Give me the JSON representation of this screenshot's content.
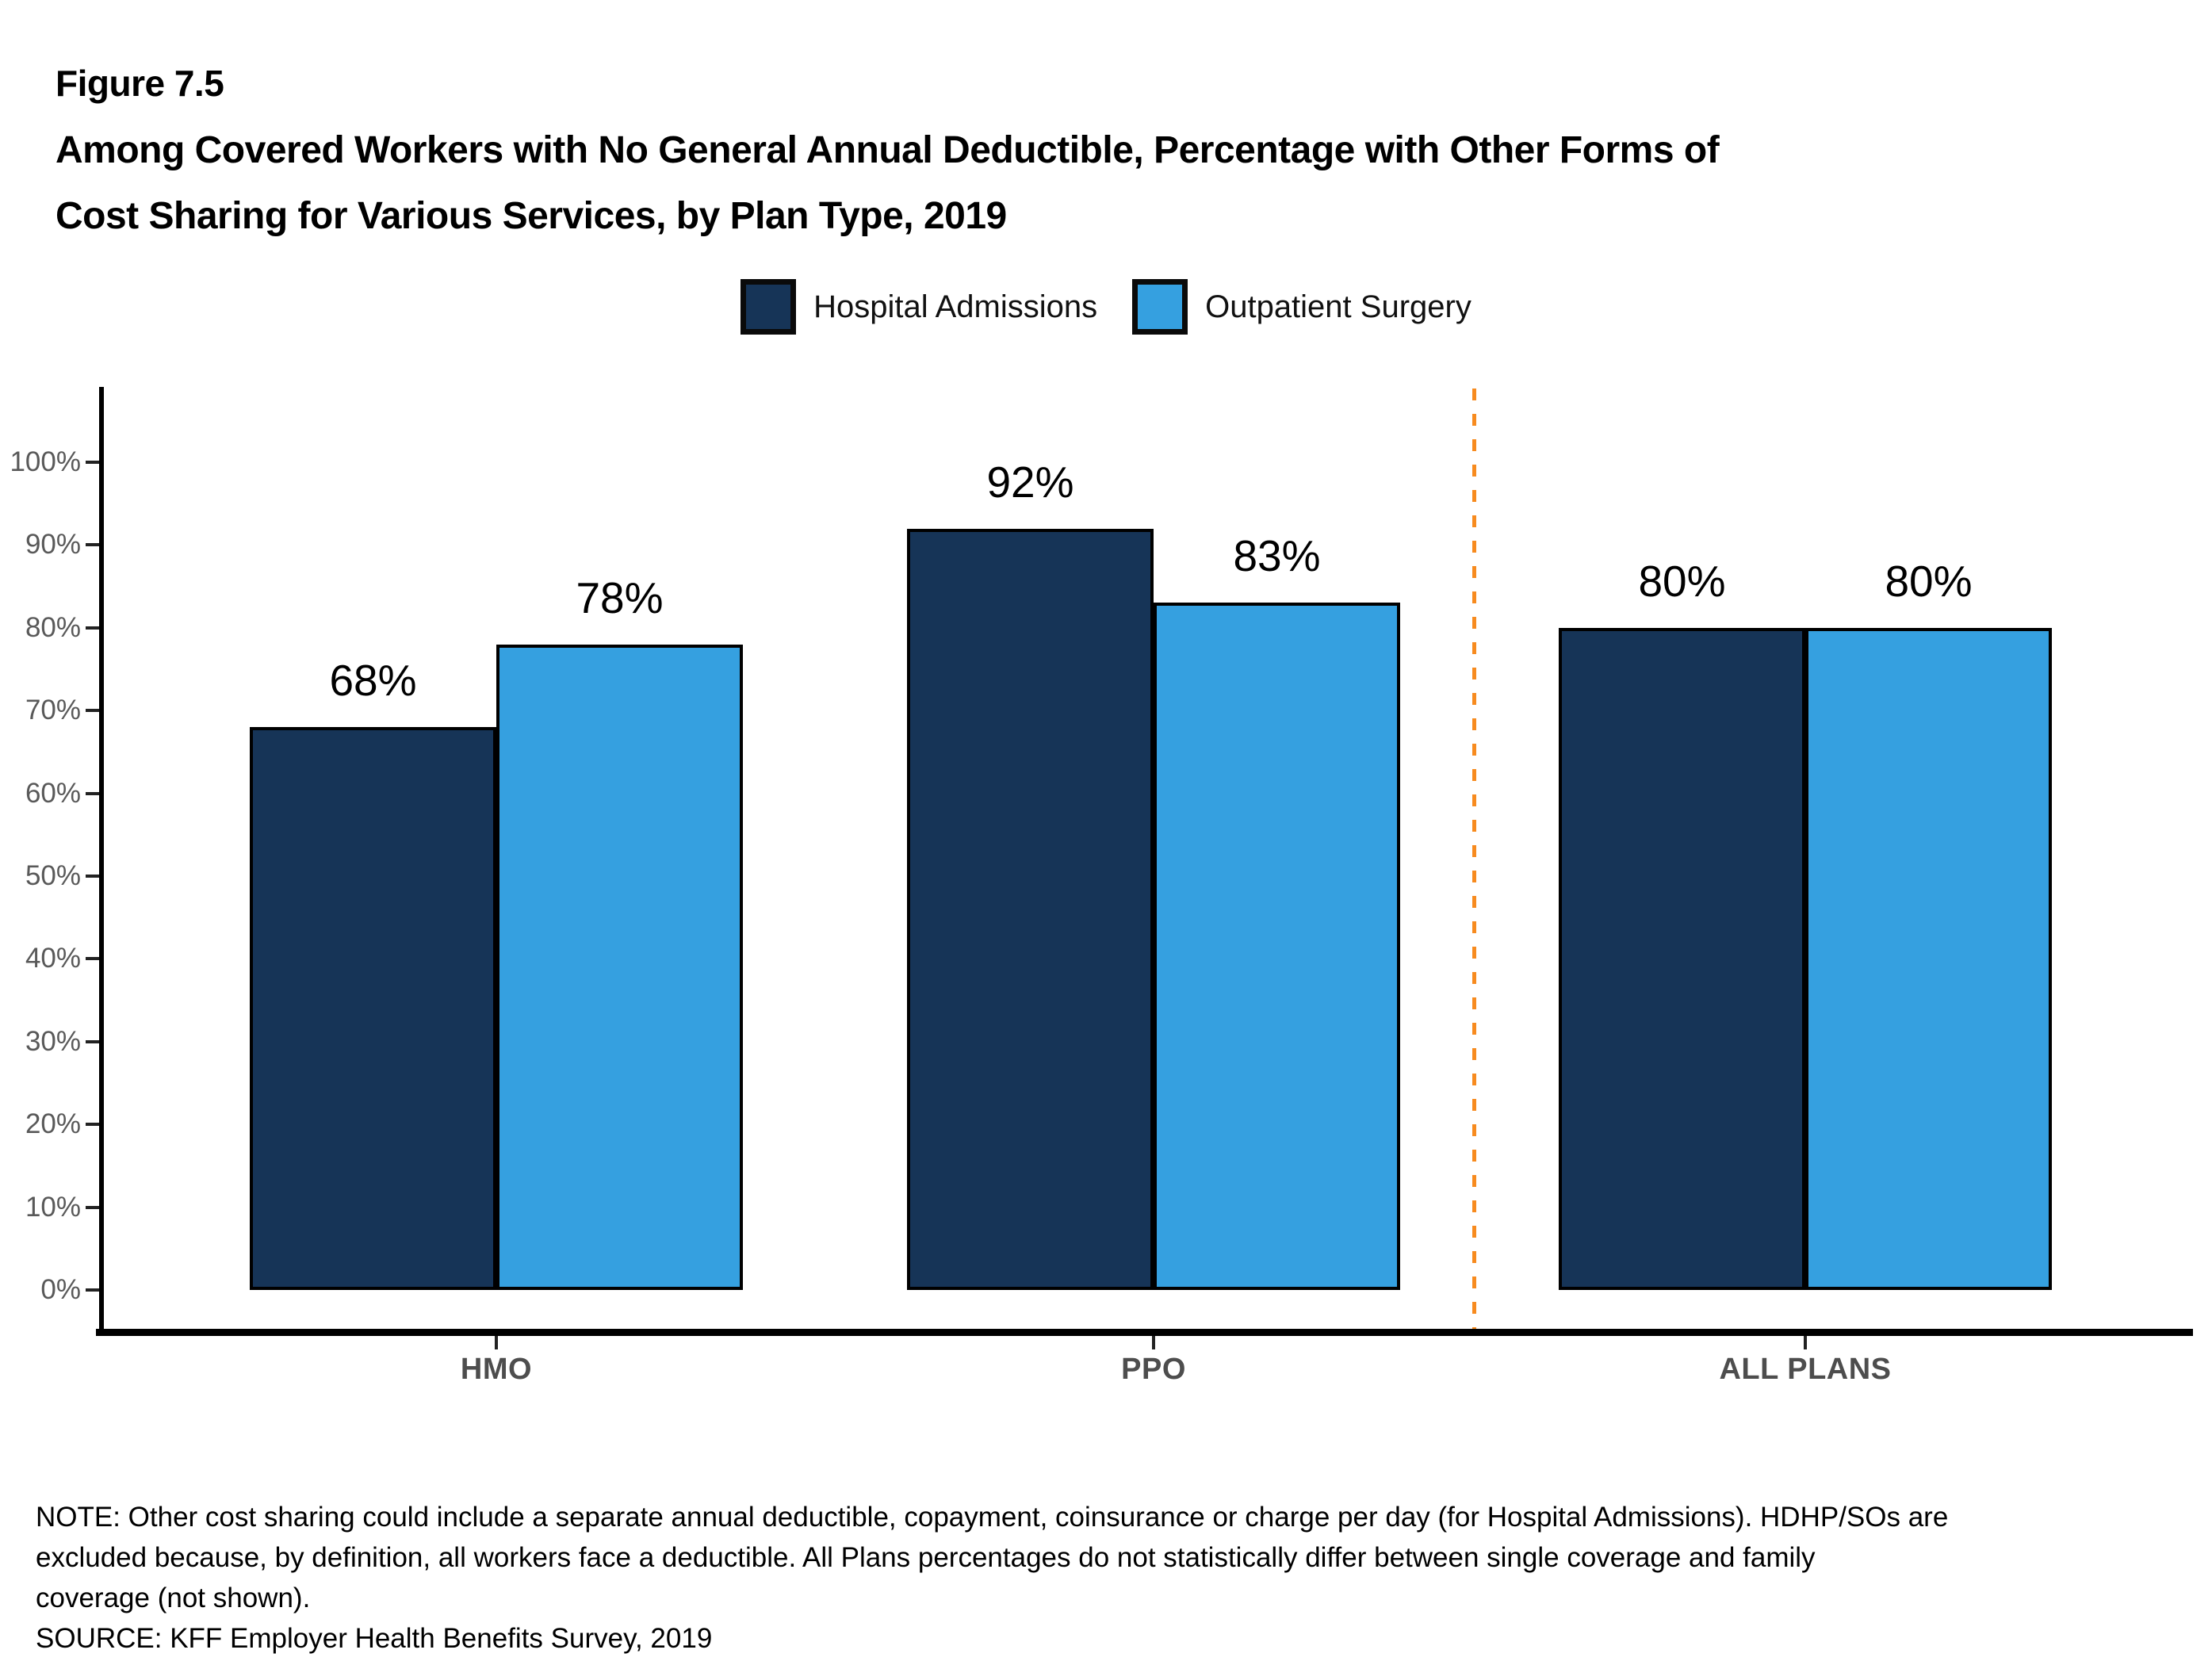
{
  "figure": {
    "label": "Figure 7.5",
    "title_line1": "Among Covered Workers with No General Annual Deductible, Percentage with Other Forms of",
    "title_line2": "Cost Sharing for Various Services, by Plan Type, 2019"
  },
  "legend": [
    {
      "label": "Hospital Admissions",
      "color": "#163457"
    },
    {
      "label": "Outpatient Surgery",
      "color": "#35A0E0"
    }
  ],
  "chart_data": {
    "type": "bar",
    "title": "Among Covered Workers with No General Annual Deductible, Percentage with Other Forms of Cost Sharing for Various Services, by Plan Type, 2019",
    "categories": [
      "HMO",
      "PPO",
      "ALL PLANS"
    ],
    "series": [
      {
        "name": "Hospital Admissions",
        "color": "#163457",
        "values": [
          68,
          92,
          80
        ]
      },
      {
        "name": "Outpatient Surgery",
        "color": "#35A0E0",
        "values": [
          78,
          83,
          80
        ]
      }
    ],
    "value_label_suffix": "%",
    "xlabel": "",
    "ylabel": "",
    "y_axis": {
      "min": 0,
      "max": 100,
      "step": 10,
      "tick_suffix": "%"
    },
    "y_tick_labels": [
      "0%",
      "10%",
      "20%",
      "30%",
      "40%",
      "50%",
      "60%",
      "70%",
      "80%",
      "90%",
      "100%"
    ],
    "grid": false,
    "legend_position": "top",
    "separator": {
      "between": [
        "PPO",
        "ALL PLANS"
      ],
      "style": "dashed",
      "color": "#F78B1F"
    },
    "colors": {
      "axis_line": "#000000",
      "tick_mark": "#222222",
      "y_tick_label": "#595959",
      "category_label": "#4D4D4D",
      "bar_border": "#000000"
    }
  },
  "notes": {
    "line1": "NOTE: Other cost sharing could include a separate annual deductible, copayment, coinsurance or charge per day (for Hospital Admissions). HDHP/SOs are",
    "line2": "excluded because, by definition, all workers face a deductible. All Plans percentages do not statistically differ between single coverage and family",
    "line3": "coverage (not shown).",
    "source": "SOURCE: KFF Employer Health Benefits Survey, 2019"
  }
}
